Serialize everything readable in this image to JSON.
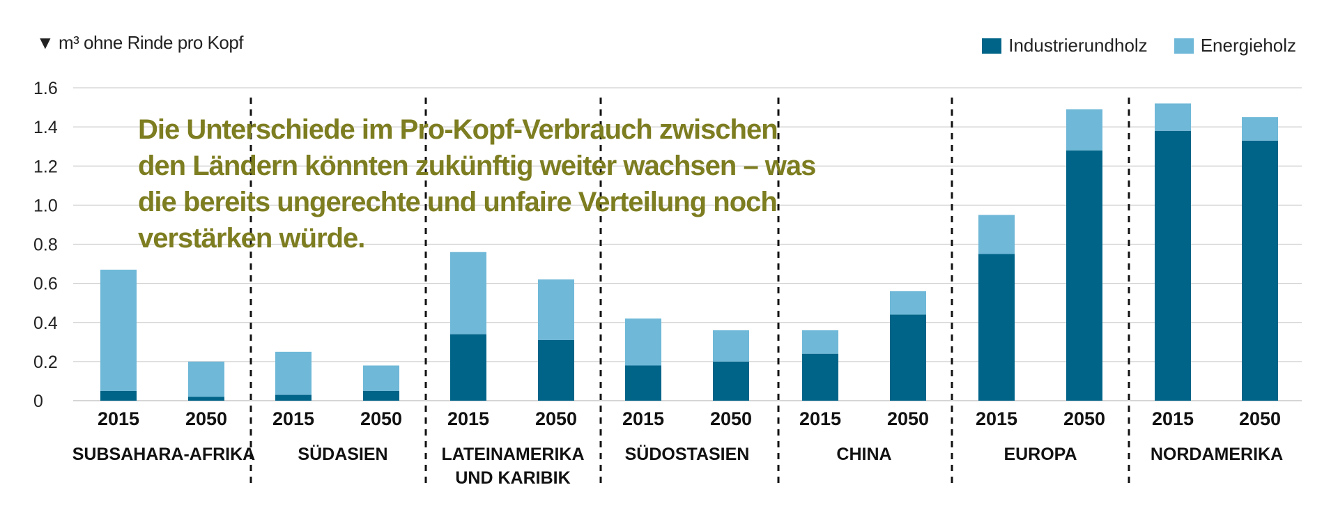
{
  "unit_label": "m³ ohne Rinde pro Kopf",
  "unit_marker": "▼",
  "headline": "Die Unterschiede im Pro-Kopf-Verbrauch zwischen den Ländern könnten zukünftig weiter wachsen – was die bereits ungerechte und unfaire Verteilung noch verstärken würde.",
  "colors": {
    "industrial": "#006488",
    "energy": "#6fb8d8",
    "grid": "#d0d0d0",
    "headline": "#7d7d21"
  },
  "chart_data": {
    "type": "bar",
    "stacked": true,
    "ylim": [
      0,
      1.6
    ],
    "yticks": [
      "0",
      "0.2",
      "0.4",
      "0.6",
      "0.8",
      "1.0",
      "1.2",
      "1.4",
      "1.6"
    ],
    "legend": [
      "Industrierundholz",
      "Energieholz"
    ],
    "legend_position": "top-right",
    "grid": true,
    "regions": [
      {
        "name": [
          "SUBSAHARA-AFRIKA"
        ],
        "bars": [
          {
            "year": "2015",
            "industrial": 0.05,
            "energy": 0.62
          },
          {
            "year": "2050",
            "industrial": 0.02,
            "energy": 0.18
          }
        ]
      },
      {
        "name": [
          "SÜDASIEN"
        ],
        "bars": [
          {
            "year": "2015",
            "industrial": 0.03,
            "energy": 0.22
          },
          {
            "year": "2050",
            "industrial": 0.05,
            "energy": 0.13
          }
        ]
      },
      {
        "name": [
          "LATEINAMERIKA",
          "UND KARIBIK"
        ],
        "bars": [
          {
            "year": "2015",
            "industrial": 0.34,
            "energy": 0.42
          },
          {
            "year": "2050",
            "industrial": 0.31,
            "energy": 0.31
          }
        ]
      },
      {
        "name": [
          "SÜDOSTASIEN"
        ],
        "bars": [
          {
            "year": "2015",
            "industrial": 0.18,
            "energy": 0.24
          },
          {
            "year": "2050",
            "industrial": 0.2,
            "energy": 0.16
          }
        ]
      },
      {
        "name": [
          "CHINA"
        ],
        "bars": [
          {
            "year": "2015",
            "industrial": 0.24,
            "energy": 0.12
          },
          {
            "year": "2050",
            "industrial": 0.44,
            "energy": 0.12
          }
        ]
      },
      {
        "name": [
          "EUROPA"
        ],
        "bars": [
          {
            "year": "2015",
            "industrial": 0.75,
            "energy": 0.2
          },
          {
            "year": "2050",
            "industrial": 1.28,
            "energy": 0.21
          }
        ]
      },
      {
        "name": [
          "NORDAMERIKA"
        ],
        "bars": [
          {
            "year": "2015",
            "industrial": 1.38,
            "energy": 0.14
          },
          {
            "year": "2050",
            "industrial": 1.33,
            "energy": 0.12
          }
        ]
      }
    ]
  }
}
